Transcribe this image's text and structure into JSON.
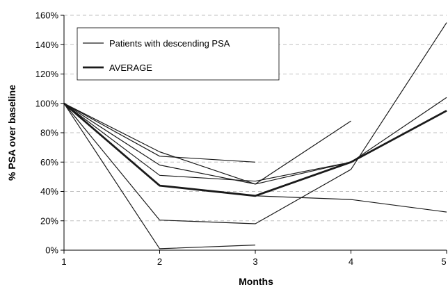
{
  "chart_data": {
    "type": "line",
    "title": "",
    "xlabel": "Months",
    "ylabel": "% PSA over baseline",
    "x": [
      1,
      2,
      3,
      4,
      5
    ],
    "xlim": [
      1,
      5
    ],
    "ylim": [
      0,
      160
    ],
    "y_ticks": [
      "0%",
      "20%",
      "40%",
      "60%",
      "80%",
      "100%",
      "120%",
      "140%",
      "160%"
    ],
    "x_ticks": [
      "1",
      "2",
      "3",
      "4",
      "5"
    ],
    "grid": "horizontal dashed",
    "legend_position": "top-left",
    "legend": [
      {
        "label": "Patients with descending PSA",
        "style": "thin"
      },
      {
        "label": "AVERAGE",
        "style": "thick"
      }
    ],
    "series": [
      {
        "values": [
          100,
          1,
          3.5,
          null,
          null
        ],
        "style": "thin"
      },
      {
        "values": [
          100,
          20.5,
          18,
          55,
          155
        ],
        "style": "thin"
      },
      {
        "values": [
          100,
          51,
          47,
          60,
          104
        ],
        "style": "thin"
      },
      {
        "values": [
          100,
          58,
          45,
          60,
          95
        ],
        "style": "thin"
      },
      {
        "values": [
          100,
          64,
          60,
          null,
          null
        ],
        "style": "thin"
      },
      {
        "values": [
          100,
          67,
          45,
          88,
          null
        ],
        "style": "thin"
      },
      {
        "values": [
          100,
          44,
          37,
          34.5,
          26
        ],
        "style": "thin"
      },
      {
        "name": "AVERAGE",
        "values": [
          100,
          44,
          37,
          60,
          95
        ],
        "style": "thick"
      }
    ],
    "colors": {
      "line": "#1a1a1a",
      "grid": "#bfbfbf",
      "axis": "#000000"
    }
  }
}
